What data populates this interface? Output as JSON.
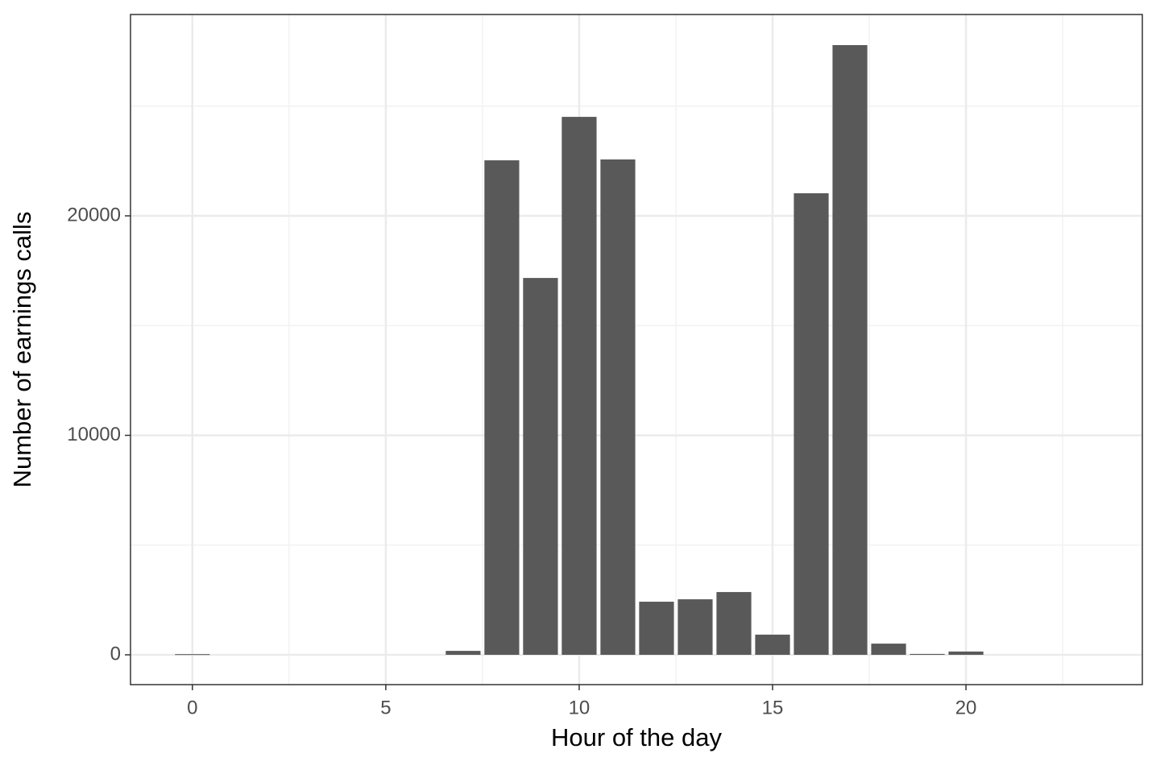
{
  "chart_data": {
    "type": "bar",
    "x_label": "Hour of the day",
    "y_label": "Number of earnings calls",
    "x": [
      0,
      7,
      8,
      9,
      10,
      11,
      12,
      13,
      14,
      15,
      16,
      17,
      18,
      19,
      20
    ],
    "values": [
      30,
      180,
      22530,
      17170,
      24510,
      22570,
      2420,
      2530,
      2860,
      920,
      21030,
      27780,
      510,
      40,
      150
    ],
    "color": "#595959",
    "xlim": [
      -1.6,
      24.56
    ],
    "xticks": [
      0,
      5,
      10,
      15,
      20
    ],
    "ylim": [
      -1358,
      29174
    ],
    "yticks": [
      0,
      10000,
      20000
    ],
    "grid": true
  }
}
